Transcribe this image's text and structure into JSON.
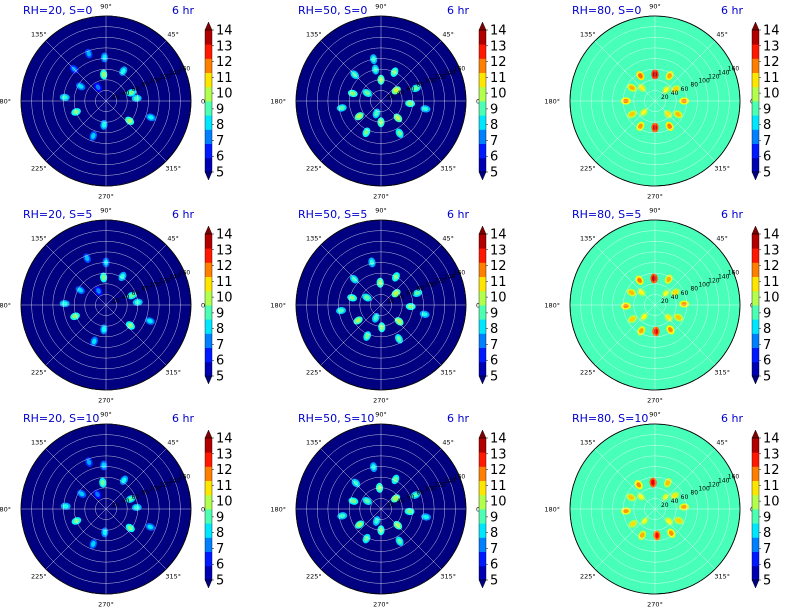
{
  "figure": {
    "angle_ticks": [
      "0°",
      "45°",
      "90°",
      "135°",
      "180°",
      "225°",
      "270°",
      "315°"
    ],
    "radial_ticks": [
      "20",
      "40",
      "60",
      "80",
      "100",
      "120",
      "140",
      "160"
    ],
    "colorbar_ticks": [
      "5",
      "6",
      "7",
      "8",
      "9",
      "10",
      "11",
      "12",
      "13",
      "14"
    ],
    "colorscale": "jet",
    "grid": true,
    "colors": {
      "title": "#0000cc",
      "grid": "#ffffff"
    }
  },
  "chart_data": [
    {
      "type": "heatmap",
      "projection": "polar",
      "title": "RH=20, S=0",
      "time_label": "6 hr",
      "clim": [
        5,
        14
      ],
      "background_value": 5,
      "rlim": [
        0,
        160
      ],
      "hotspots": [
        {
          "r": 50,
          "theta": 95,
          "v": 9.6
        },
        {
          "r": 82,
          "theta": 92,
          "v": 8.2
        },
        {
          "r": 65,
          "theta": 60,
          "v": 8.6
        },
        {
          "r": 50,
          "theta": 18,
          "v": 9.3
        },
        {
          "r": 58,
          "theta": 5,
          "v": 8.9
        },
        {
          "r": 60,
          "theta": 200,
          "v": 9.5
        },
        {
          "r": 78,
          "theta": 175,
          "v": 8.8
        },
        {
          "r": 58,
          "theta": 320,
          "v": 9.7
        },
        {
          "r": 45,
          "theta": 265,
          "v": 8.5
        },
        {
          "r": 70,
          "theta": 250,
          "v": 8.0
        },
        {
          "r": 95,
          "theta": 110,
          "v": 7.7
        },
        {
          "r": 90,
          "theta": 340,
          "v": 8.3
        },
        {
          "r": 85,
          "theta": 135,
          "v": 7.5
        },
        {
          "r": 30,
          "theta": 120,
          "v": 7.2
        },
        {
          "r": 55,
          "theta": 150,
          "v": 8.1
        }
      ]
    },
    {
      "type": "heatmap",
      "projection": "polar",
      "title": "RH=50, S=0",
      "time_label": "6 hr",
      "clim": [
        5,
        14
      ],
      "background_value": 5,
      "rlim": [
        0,
        160
      ],
      "hotspots": [
        {
          "r": 40,
          "theta": 90,
          "v": 9.8
        },
        {
          "r": 60,
          "theta": 65,
          "v": 9.5
        },
        {
          "r": 35,
          "theta": 35,
          "v": 10.2
        },
        {
          "r": 70,
          "theta": 20,
          "v": 9.2
        },
        {
          "r": 55,
          "theta": 355,
          "v": 9.6
        },
        {
          "r": 45,
          "theta": 315,
          "v": 10.0
        },
        {
          "r": 70,
          "theta": 300,
          "v": 9.3
        },
        {
          "r": 40,
          "theta": 270,
          "v": 9.7
        },
        {
          "r": 65,
          "theta": 245,
          "v": 9.4
        },
        {
          "r": 50,
          "theta": 215,
          "v": 9.9
        },
        {
          "r": 75,
          "theta": 190,
          "v": 9.1
        },
        {
          "r": 55,
          "theta": 165,
          "v": 9.6
        },
        {
          "r": 70,
          "theta": 135,
          "v": 9.0
        },
        {
          "r": 30,
          "theta": 150,
          "v": 9.3
        },
        {
          "r": 80,
          "theta": 100,
          "v": 8.8
        },
        {
          "r": 85,
          "theta": 350,
          "v": 8.7
        },
        {
          "r": 25,
          "theta": 250,
          "v": 9.0
        },
        {
          "r": 60,
          "theta": 100,
          "v": 8.9
        }
      ]
    },
    {
      "type": "heatmap",
      "projection": "polar",
      "title": "RH=80, S=0",
      "time_label": "6 hr",
      "clim": [
        5,
        14
      ],
      "background_value": 9,
      "rlim": [
        0,
        160
      ],
      "hotspots": [
        {
          "r": 50,
          "theta": 90,
          "v": 13.5
        },
        {
          "r": 55,
          "theta": 60,
          "v": 11.4
        },
        {
          "r": 45,
          "theta": 30,
          "v": 11.0
        },
        {
          "r": 55,
          "theta": 0,
          "v": 11.6
        },
        {
          "r": 50,
          "theta": 330,
          "v": 11.2
        },
        {
          "r": 55,
          "theta": 300,
          "v": 11.8
        },
        {
          "r": 50,
          "theta": 270,
          "v": 13.2
        },
        {
          "r": 55,
          "theta": 240,
          "v": 11.5
        },
        {
          "r": 50,
          "theta": 210,
          "v": 11.1
        },
        {
          "r": 55,
          "theta": 180,
          "v": 11.7
        },
        {
          "r": 50,
          "theta": 150,
          "v": 11.3
        },
        {
          "r": 55,
          "theta": 120,
          "v": 11.9
        },
        {
          "r": 30,
          "theta": 45,
          "v": 10.6
        },
        {
          "r": 35,
          "theta": 135,
          "v": 10.8
        },
        {
          "r": 30,
          "theta": 225,
          "v": 10.7
        },
        {
          "r": 35,
          "theta": 315,
          "v": 10.9
        }
      ]
    },
    {
      "type": "heatmap",
      "projection": "polar",
      "title": "RH=20, S=5",
      "time_label": "6 hr",
      "clim": [
        5,
        14
      ],
      "background_value": 5,
      "rlim": [
        0,
        160
      ],
      "hotspots": [
        {
          "r": 52,
          "theta": 95,
          "v": 9.4
        },
        {
          "r": 80,
          "theta": 90,
          "v": 8.1
        },
        {
          "r": 62,
          "theta": 60,
          "v": 8.7
        },
        {
          "r": 52,
          "theta": 20,
          "v": 9.2
        },
        {
          "r": 60,
          "theta": 5,
          "v": 8.8
        },
        {
          "r": 62,
          "theta": 200,
          "v": 9.6
        },
        {
          "r": 78,
          "theta": 178,
          "v": 8.7
        },
        {
          "r": 60,
          "theta": 320,
          "v": 9.5
        },
        {
          "r": 46,
          "theta": 265,
          "v": 8.4
        },
        {
          "r": 72,
          "theta": 252,
          "v": 8.1
        },
        {
          "r": 95,
          "theta": 112,
          "v": 7.8
        },
        {
          "r": 88,
          "theta": 340,
          "v": 8.2
        },
        {
          "r": 30,
          "theta": 118,
          "v": 7.3
        },
        {
          "r": 56,
          "theta": 150,
          "v": 8.0
        }
      ]
    },
    {
      "type": "heatmap",
      "projection": "polar",
      "title": "RH=50, S=5",
      "time_label": "6 hr",
      "clim": [
        5,
        14
      ],
      "background_value": 5,
      "rlim": [
        0,
        160
      ],
      "hotspots": [
        {
          "r": 42,
          "theta": 92,
          "v": 9.7
        },
        {
          "r": 60,
          "theta": 62,
          "v": 9.4
        },
        {
          "r": 36,
          "theta": 38,
          "v": 10.0
        },
        {
          "r": 72,
          "theta": 18,
          "v": 9.1
        },
        {
          "r": 56,
          "theta": 357,
          "v": 9.5
        },
        {
          "r": 46,
          "theta": 318,
          "v": 9.9
        },
        {
          "r": 72,
          "theta": 298,
          "v": 9.2
        },
        {
          "r": 42,
          "theta": 272,
          "v": 9.6
        },
        {
          "r": 64,
          "theta": 246,
          "v": 9.3
        },
        {
          "r": 52,
          "theta": 214,
          "v": 9.8
        },
        {
          "r": 76,
          "theta": 188,
          "v": 9.0
        },
        {
          "r": 56,
          "theta": 166,
          "v": 9.5
        },
        {
          "r": 70,
          "theta": 136,
          "v": 8.9
        },
        {
          "r": 30,
          "theta": 152,
          "v": 9.2
        },
        {
          "r": 82,
          "theta": 102,
          "v": 8.7
        },
        {
          "r": 84,
          "theta": 348,
          "v": 8.6
        },
        {
          "r": 26,
          "theta": 248,
          "v": 8.9
        }
      ]
    },
    {
      "type": "heatmap",
      "projection": "polar",
      "title": "RH=80, S=5",
      "time_label": "6 hr",
      "clim": [
        5,
        14
      ],
      "background_value": 9,
      "rlim": [
        0,
        160
      ],
      "hotspots": [
        {
          "r": 50,
          "theta": 92,
          "v": 13.3
        },
        {
          "r": 55,
          "theta": 62,
          "v": 11.3
        },
        {
          "r": 45,
          "theta": 32,
          "v": 10.9
        },
        {
          "r": 55,
          "theta": 2,
          "v": 11.5
        },
        {
          "r": 50,
          "theta": 332,
          "v": 11.1
        },
        {
          "r": 55,
          "theta": 302,
          "v": 11.7
        },
        {
          "r": 50,
          "theta": 272,
          "v": 13.0
        },
        {
          "r": 55,
          "theta": 242,
          "v": 11.4
        },
        {
          "r": 50,
          "theta": 212,
          "v": 11.0
        },
        {
          "r": 55,
          "theta": 182,
          "v": 11.6
        },
        {
          "r": 50,
          "theta": 152,
          "v": 11.2
        },
        {
          "r": 55,
          "theta": 122,
          "v": 11.8
        },
        {
          "r": 30,
          "theta": 47,
          "v": 10.5
        },
        {
          "r": 35,
          "theta": 137,
          "v": 10.7
        },
        {
          "r": 30,
          "theta": 227,
          "v": 10.6
        },
        {
          "r": 35,
          "theta": 317,
          "v": 10.8
        }
      ]
    },
    {
      "type": "heatmap",
      "projection": "polar",
      "title": "RH=20, S=10",
      "time_label": "6 hr",
      "clim": [
        5,
        14
      ],
      "background_value": 5,
      "rlim": [
        0,
        160
      ],
      "hotspots": [
        {
          "r": 50,
          "theta": 97,
          "v": 9.3
        },
        {
          "r": 82,
          "theta": 93,
          "v": 8.0
        },
        {
          "r": 64,
          "theta": 58,
          "v": 8.5
        },
        {
          "r": 50,
          "theta": 22,
          "v": 9.1
        },
        {
          "r": 58,
          "theta": 3,
          "v": 8.7
        },
        {
          "r": 60,
          "theta": 202,
          "v": 9.4
        },
        {
          "r": 76,
          "theta": 176,
          "v": 8.6
        },
        {
          "r": 58,
          "theta": 322,
          "v": 9.4
        },
        {
          "r": 44,
          "theta": 267,
          "v": 8.3
        },
        {
          "r": 70,
          "theta": 250,
          "v": 8.0
        },
        {
          "r": 94,
          "theta": 110,
          "v": 7.6
        },
        {
          "r": 90,
          "theta": 338,
          "v": 8.1
        },
        {
          "r": 32,
          "theta": 120,
          "v": 7.2
        },
        {
          "r": 54,
          "theta": 148,
          "v": 7.9
        }
      ]
    },
    {
      "type": "heatmap",
      "projection": "polar",
      "title": "RH=50, S=10",
      "time_label": "6 hr",
      "clim": [
        5,
        14
      ],
      "background_value": 5,
      "rlim": [
        0,
        160
      ],
      "hotspots": [
        {
          "r": 40,
          "theta": 94,
          "v": 9.6
        },
        {
          "r": 62,
          "theta": 64,
          "v": 9.3
        },
        {
          "r": 34,
          "theta": 36,
          "v": 9.9
        },
        {
          "r": 70,
          "theta": 22,
          "v": 9.0
        },
        {
          "r": 54,
          "theta": 355,
          "v": 9.4
        },
        {
          "r": 44,
          "theta": 316,
          "v": 9.8
        },
        {
          "r": 70,
          "theta": 300,
          "v": 9.1
        },
        {
          "r": 40,
          "theta": 270,
          "v": 9.5
        },
        {
          "r": 62,
          "theta": 244,
          "v": 9.2
        },
        {
          "r": 50,
          "theta": 216,
          "v": 9.7
        },
        {
          "r": 74,
          "theta": 190,
          "v": 8.9
        },
        {
          "r": 54,
          "theta": 164,
          "v": 9.4
        },
        {
          "r": 68,
          "theta": 134,
          "v": 8.8
        },
        {
          "r": 30,
          "theta": 150,
          "v": 9.1
        },
        {
          "r": 80,
          "theta": 100,
          "v": 8.6
        },
        {
          "r": 86,
          "theta": 350,
          "v": 8.5
        },
        {
          "r": 24,
          "theta": 250,
          "v": 8.8
        }
      ]
    },
    {
      "type": "heatmap",
      "projection": "polar",
      "title": "RH=80, S=10",
      "time_label": "6 hr",
      "clim": [
        5,
        14
      ],
      "background_value": 9,
      "rlim": [
        0,
        160
      ],
      "hotspots": [
        {
          "r": 50,
          "theta": 94,
          "v": 13.1
        },
        {
          "r": 55,
          "theta": 64,
          "v": 11.2
        },
        {
          "r": 45,
          "theta": 34,
          "v": 10.8
        },
        {
          "r": 55,
          "theta": 4,
          "v": 11.4
        },
        {
          "r": 50,
          "theta": 334,
          "v": 11.0
        },
        {
          "r": 55,
          "theta": 304,
          "v": 11.6
        },
        {
          "r": 50,
          "theta": 274,
          "v": 12.8
        },
        {
          "r": 55,
          "theta": 244,
          "v": 11.3
        },
        {
          "r": 50,
          "theta": 214,
          "v": 10.9
        },
        {
          "r": 55,
          "theta": 184,
          "v": 11.5
        },
        {
          "r": 50,
          "theta": 154,
          "v": 11.1
        },
        {
          "r": 55,
          "theta": 124,
          "v": 11.7
        },
        {
          "r": 30,
          "theta": 49,
          "v": 10.4
        },
        {
          "r": 35,
          "theta": 139,
          "v": 10.6
        },
        {
          "r": 30,
          "theta": 229,
          "v": 10.5
        },
        {
          "r": 35,
          "theta": 319,
          "v": 10.7
        }
      ]
    }
  ]
}
